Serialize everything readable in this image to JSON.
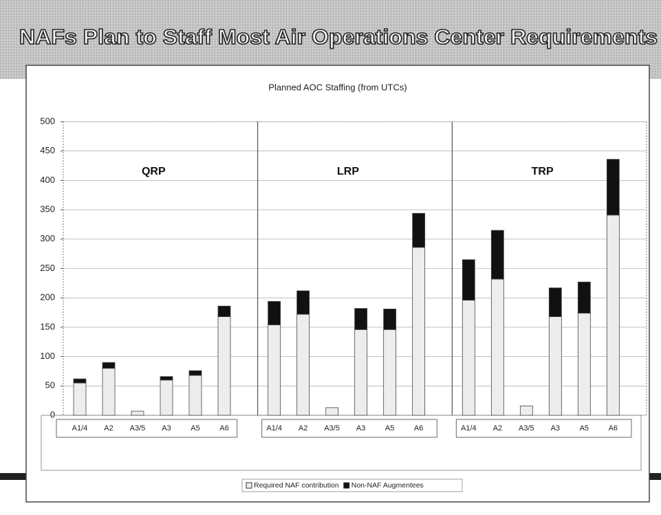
{
  "slide_title": "NAFs Plan to Staff Most Air Operations Center Requirements",
  "chart_data": {
    "type": "stacked_bar",
    "title": "Planned AOC Staffing (from UTCs)",
    "groups": [
      "QRP",
      "LRP",
      "TRP"
    ],
    "categories": [
      "A1/4",
      "A2",
      "A3/5",
      "A3",
      "A5",
      "A6",
      "A1/4",
      "A2",
      "A3/5",
      "A3",
      "A5",
      "A6",
      "A1/4",
      "A2",
      "A3/5",
      "A3",
      "A5",
      "A6"
    ],
    "series": [
      {
        "name": "Required NAF contribution",
        "color": "#ededed",
        "values": [
          55,
          80,
          7,
          60,
          68,
          168,
          154,
          172,
          13,
          146,
          146,
          286,
          196,
          232,
          16,
          168,
          174,
          341
        ]
      },
      {
        "name": "Non-NAF Augmentees",
        "color": "#111111",
        "values": [
          7,
          10,
          0,
          6,
          8,
          18,
          40,
          40,
          0,
          36,
          35,
          58,
          69,
          83,
          0,
          49,
          53,
          95
        ]
      }
    ],
    "ylim": [
      0,
      500
    ],
    "yticks": [
      0,
      50,
      100,
      150,
      200,
      250,
      300,
      350,
      400,
      450,
      500
    ],
    "grid": true,
    "legend": "bottom"
  }
}
